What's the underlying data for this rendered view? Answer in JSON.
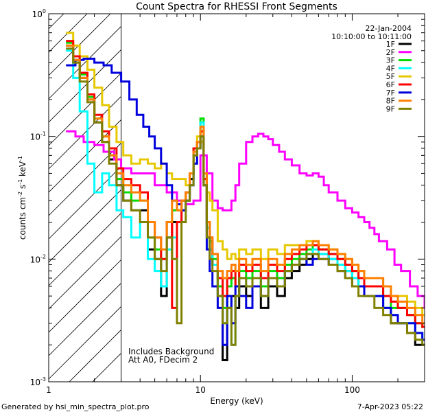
{
  "chart_data": {
    "type": "line",
    "title": "Count Spectra for RHESSI Front Segments",
    "xlabel": "Energy (keV)",
    "ylabel": "counts cm-2 s-1 keV-1",
    "xscale": "log",
    "yscale": "log",
    "xlim": [
      1,
      300
    ],
    "ylim": [
      0.001,
      1.0
    ],
    "x_tick_labels": [
      {
        "value": 1,
        "label": "1"
      },
      {
        "value": 10,
        "label": "10"
      },
      {
        "value": 100,
        "label": "100"
      }
    ],
    "y_tick_labels": [
      {
        "value": 1.0,
        "base": "10",
        "exp": "0"
      },
      {
        "value": 0.1,
        "base": "10",
        "exp": "-1"
      },
      {
        "value": 0.01,
        "base": "10",
        "exp": "-2"
      },
      {
        "value": 0.001,
        "base": "10",
        "exp": "-3"
      }
    ],
    "shaded_region": {
      "x_max": 3.0,
      "style": "hatched"
    },
    "legend_header": [
      "22-Jan-2004",
      "10:10:00 to 10:11:00"
    ],
    "annotations": [
      "Includes Background",
      "Att A0, FDecim 2"
    ],
    "series": [
      {
        "name": "1F",
        "color": "#000000",
        "x": [
          1.3,
          1.45,
          1.6,
          1.8,
          2.0,
          2.25,
          2.5,
          2.8,
          3.1,
          3.5,
          4.0,
          4.5,
          5.0,
          5.5,
          6.0,
          6.5,
          7.0,
          7.5,
          8.0,
          8.5,
          9.0,
          9.5,
          10.0,
          10.5,
          11.0,
          11.5,
          12.0,
          13,
          14,
          15,
          16,
          17,
          18,
          20,
          22,
          25,
          28,
          32,
          36,
          40,
          45,
          50,
          55,
          60,
          70,
          80,
          90,
          100,
          110,
          120,
          140,
          160,
          180,
          200,
          230,
          260,
          290
        ],
        "y": [
          0.55,
          0.4,
          0.3,
          0.2,
          0.13,
          0.09,
          0.065,
          0.04,
          0.03,
          0.025,
          0.025,
          0.012,
          0.01,
          0.005,
          0.015,
          0.02,
          0.02,
          0.025,
          0.03,
          0.045,
          0.07,
          0.08,
          0.09,
          0.04,
          0.015,
          0.012,
          0.009,
          0.005,
          0.0015,
          0.004,
          0.005,
          0.004,
          0.006,
          0.005,
          0.006,
          0.004,
          0.006,
          0.005,
          0.007,
          0.008,
          0.009,
          0.01,
          0.011,
          0.011,
          0.01,
          0.009,
          0.008,
          0.007,
          0.006,
          0.005,
          0.005,
          0.004,
          0.003,
          0.003,
          0.0025,
          0.002,
          0.002
        ]
      },
      {
        "name": "2F",
        "color": "#ff00ff",
        "x": [
          1.3,
          1.5,
          1.7,
          2.0,
          2.3,
          2.7,
          3.0,
          3.5,
          4.0,
          4.5,
          5.0,
          6.0,
          7.0,
          8.0,
          9.0,
          10.0,
          11.0,
          12.0,
          13,
          14,
          15,
          16,
          17,
          18,
          20,
          22,
          24,
          26,
          28,
          30,
          33,
          36,
          40,
          45,
          50,
          55,
          60,
          65,
          70,
          80,
          90,
          100,
          110,
          120,
          130,
          140,
          150,
          170,
          190,
          210,
          240,
          270,
          300
        ],
        "y": [
          0.11,
          0.1,
          0.09,
          0.085,
          0.075,
          0.065,
          0.055,
          0.05,
          0.05,
          0.05,
          0.04,
          0.035,
          0.03,
          0.028,
          0.03,
          0.07,
          0.05,
          0.03,
          0.026,
          0.025,
          0.025,
          0.03,
          0.04,
          0.06,
          0.09,
          0.1,
          0.105,
          0.1,
          0.095,
          0.085,
          0.075,
          0.065,
          0.058,
          0.05,
          0.048,
          0.05,
          0.047,
          0.04,
          0.035,
          0.03,
          0.026,
          0.024,
          0.022,
          0.02,
          0.018,
          0.016,
          0.014,
          0.012,
          0.009,
          0.008,
          0.006,
          0.005,
          0.004
        ]
      },
      {
        "name": "3F",
        "color": "#00dd00",
        "x": [
          1.3,
          1.45,
          1.6,
          1.8,
          2.0,
          2.25,
          2.5,
          2.8,
          3.1,
          3.5,
          4.0,
          4.5,
          5.0,
          5.5,
          6.0,
          6.5,
          7.0,
          7.5,
          8.0,
          8.5,
          9.0,
          9.5,
          10.0,
          10.5,
          11.0,
          11.5,
          12.0,
          13,
          14,
          15,
          16,
          17,
          18,
          20,
          22,
          25,
          28,
          32,
          36,
          40,
          45,
          50,
          55,
          60,
          70,
          80,
          90,
          100,
          110,
          120,
          140,
          160,
          180,
          200,
          230,
          260,
          290
        ],
        "y": [
          0.58,
          0.42,
          0.32,
          0.21,
          0.14,
          0.1,
          0.07,
          0.045,
          0.035,
          0.03,
          0.03,
          0.015,
          0.012,
          0.01,
          0.02,
          0.025,
          0.025,
          0.03,
          0.035,
          0.05,
          0.08,
          0.09,
          0.14,
          0.05,
          0.02,
          0.014,
          0.01,
          0.006,
          0.004,
          0.006,
          0.007,
          0.006,
          0.008,
          0.007,
          0.008,
          0.006,
          0.008,
          0.007,
          0.009,
          0.01,
          0.011,
          0.012,
          0.013,
          0.012,
          0.011,
          0.01,
          0.009,
          0.008,
          0.007,
          0.006,
          0.006,
          0.005,
          0.004,
          0.004,
          0.0035,
          0.003,
          0.0028
        ]
      },
      {
        "name": "4F",
        "color": "#00ffff",
        "x": [
          1.3,
          1.45,
          1.6,
          1.8,
          2.0,
          2.25,
          2.5,
          2.8,
          3.1,
          3.5,
          4.0,
          4.5,
          5.0,
          5.5,
          6.0,
          6.5,
          7.0,
          7.5,
          8.0,
          8.5,
          9.0,
          9.5,
          10.0,
          10.5,
          11.0,
          11.5,
          12.0,
          13,
          14,
          15,
          16,
          17,
          18,
          20,
          22,
          25,
          28,
          32,
          36,
          40,
          45,
          50,
          55,
          60,
          70,
          80,
          90,
          100,
          110,
          120,
          140,
          160,
          180,
          200,
          230,
          260,
          290
        ],
        "y": [
          0.5,
          0.3,
          0.16,
          0.06,
          0.035,
          0.05,
          0.04,
          0.025,
          0.022,
          0.015,
          0.02,
          0.01,
          0.008,
          0.006,
          0.012,
          0.015,
          0.02,
          0.025,
          0.03,
          0.04,
          0.06,
          0.08,
          0.13,
          0.045,
          0.018,
          0.012,
          0.009,
          0.005,
          0.003,
          0.005,
          0.002,
          0.005,
          0.007,
          0.006,
          0.007,
          0.005,
          0.007,
          0.006,
          0.008,
          0.009,
          0.01,
          0.011,
          0.012,
          0.011,
          0.01,
          0.009,
          0.008,
          0.007,
          0.006,
          0.005,
          0.005,
          0.004,
          0.0035,
          0.003,
          0.003,
          0.0025,
          0.0022
        ]
      },
      {
        "name": "5F",
        "color": "#e6c800",
        "x": [
          1.3,
          1.45,
          1.6,
          1.8,
          2.0,
          2.25,
          2.5,
          2.8,
          3.1,
          3.5,
          4.0,
          4.5,
          5.0,
          5.5,
          6.0,
          6.5,
          7.0,
          7.5,
          8.0,
          8.5,
          9.0,
          9.5,
          10.0,
          10.5,
          11.0,
          11.5,
          12.0,
          13,
          14,
          15,
          16,
          17,
          18,
          20,
          22,
          25,
          28,
          32,
          36,
          40,
          45,
          50,
          55,
          60,
          70,
          80,
          90,
          100,
          110,
          120,
          140,
          160,
          180,
          200,
          230,
          260,
          290
        ],
        "y": [
          0.7,
          0.55,
          0.45,
          0.35,
          0.25,
          0.18,
          0.12,
          0.09,
          0.07,
          0.06,
          0.065,
          0.06,
          0.055,
          0.06,
          0.05,
          0.045,
          0.045,
          0.045,
          0.04,
          0.05,
          0.07,
          0.1,
          0.09,
          0.05,
          0.035,
          0.03,
          0.025,
          0.014,
          0.012,
          0.01,
          0.011,
          0.01,
          0.012,
          0.011,
          0.012,
          0.01,
          0.012,
          0.011,
          0.013,
          0.013,
          0.013,
          0.014,
          0.014,
          0.013,
          0.012,
          0.011,
          0.01,
          0.009,
          0.008,
          0.007,
          0.007,
          0.006,
          0.005,
          0.005,
          0.0045,
          0.004,
          0.0035
        ]
      },
      {
        "name": "6F",
        "color": "#ff0000",
        "x": [
          1.3,
          1.45,
          1.6,
          1.8,
          2.0,
          2.25,
          2.5,
          2.8,
          3.1,
          3.5,
          4.0,
          4.5,
          5.0,
          5.5,
          6.0,
          6.5,
          7.0,
          7.5,
          8.0,
          8.5,
          9.0,
          9.5,
          10.0,
          10.5,
          11.0,
          11.5,
          12.0,
          13,
          14,
          15,
          16,
          17,
          18,
          20,
          22,
          25,
          28,
          32,
          36,
          40,
          45,
          50,
          55,
          60,
          70,
          80,
          90,
          100,
          110,
          120,
          140,
          160,
          180,
          200,
          230,
          260,
          290
        ],
        "y": [
          0.6,
          0.45,
          0.33,
          0.22,
          0.15,
          0.11,
          0.08,
          0.055,
          0.045,
          0.04,
          0.035,
          0.02,
          0.015,
          0.01,
          0.02,
          0.004,
          0.02,
          0.03,
          0.035,
          0.05,
          0.08,
          0.09,
          0.11,
          0.045,
          0.02,
          0.015,
          0.011,
          0.007,
          0.005,
          0.007,
          0.008,
          0.006,
          0.009,
          0.008,
          0.009,
          0.007,
          0.009,
          0.008,
          0.01,
          0.011,
          0.012,
          0.013,
          0.013,
          0.012,
          0.011,
          0.01,
          0.009,
          0.008,
          0.007,
          0.006,
          0.006,
          0.005,
          0.0045,
          0.004,
          0.0035,
          0.003,
          0.0028
        ]
      },
      {
        "name": "7F",
        "color": "#0000dd",
        "x": [
          1.3,
          1.5,
          1.7,
          2.0,
          2.3,
          2.6,
          3.0,
          3.4,
          3.8,
          4.2,
          4.6,
          5.0,
          5.5,
          6.0,
          6.5,
          7.0,
          7.5,
          8.0,
          8.5,
          9.0,
          9.5,
          10.0,
          10.5,
          11.0,
          11.5,
          12.0,
          13,
          14,
          15,
          16,
          17,
          18,
          20,
          22,
          25,
          28,
          32,
          36,
          40,
          45,
          50,
          55,
          60,
          70,
          80,
          90,
          100,
          110,
          120,
          140,
          160,
          180,
          200,
          230,
          260,
          290
        ],
        "y": [
          0.38,
          0.42,
          0.43,
          0.4,
          0.38,
          0.33,
          0.28,
          0.2,
          0.15,
          0.12,
          0.1,
          0.08,
          0.06,
          0.04,
          0.03,
          0.028,
          0.025,
          0.03,
          0.04,
          0.06,
          0.08,
          0.1,
          0.04,
          0.012,
          0.008,
          0.006,
          0.004,
          0.002,
          0.005,
          0.003,
          0.006,
          0.005,
          0.004,
          0.006,
          0.005,
          0.007,
          0.006,
          0.008,
          0.009,
          0.01,
          0.009,
          0.01,
          0.01,
          0.009,
          0.008,
          0.007,
          0.006,
          0.006,
          0.005,
          0.005,
          0.004,
          0.0035,
          0.003,
          0.003,
          0.0025,
          0.0022
        ]
      },
      {
        "name": "8F",
        "color": "#ff7f00",
        "x": [
          1.3,
          1.45,
          1.6,
          1.8,
          2.0,
          2.25,
          2.5,
          2.8,
          3.1,
          3.5,
          4.0,
          4.5,
          5.0,
          5.5,
          6.0,
          6.5,
          7.0,
          7.5,
          8.0,
          8.5,
          9.0,
          9.5,
          10.0,
          10.5,
          11.0,
          11.5,
          12.0,
          13,
          14,
          15,
          16,
          17,
          18,
          20,
          22,
          25,
          28,
          32,
          36,
          40,
          45,
          50,
          55,
          60,
          70,
          80,
          90,
          100,
          110,
          120,
          140,
          160,
          180,
          200,
          230,
          260,
          290
        ],
        "y": [
          0.55,
          0.42,
          0.3,
          0.2,
          0.14,
          0.1,
          0.07,
          0.05,
          0.04,
          0.035,
          0.03,
          0.02,
          0.015,
          0.012,
          0.02,
          0.03,
          0.025,
          0.03,
          0.035,
          0.05,
          0.075,
          0.09,
          0.12,
          0.05,
          0.02,
          0.015,
          0.011,
          0.008,
          0.007,
          0.008,
          0.009,
          0.008,
          0.01,
          0.009,
          0.01,
          0.008,
          0.01,
          0.009,
          0.011,
          0.012,
          0.013,
          0.013,
          0.014,
          0.013,
          0.012,
          0.011,
          0.01,
          0.009,
          0.008,
          0.007,
          0.007,
          0.006,
          0.005,
          0.0045,
          0.004,
          0.0035,
          0.003
        ]
      },
      {
        "name": "9F",
        "color": "#808000",
        "x": [
          1.3,
          1.45,
          1.6,
          1.8,
          2.0,
          2.25,
          2.5,
          2.8,
          3.1,
          3.5,
          4.0,
          4.5,
          5.0,
          5.5,
          6.0,
          6.5,
          7.0,
          7.5,
          8.0,
          8.5,
          9.0,
          9.5,
          10.0,
          10.5,
          11.0,
          11.5,
          12.0,
          13,
          14,
          15,
          16,
          17,
          18,
          20,
          22,
          25,
          28,
          32,
          36,
          40,
          45,
          50,
          55,
          60,
          70,
          80,
          90,
          100,
          110,
          120,
          140,
          160,
          180,
          200,
          230,
          260,
          290
        ],
        "y": [
          0.52,
          0.4,
          0.28,
          0.19,
          0.13,
          0.09,
          0.06,
          0.04,
          0.03,
          0.025,
          0.02,
          0.015,
          0.01,
          0.008,
          0.015,
          0.01,
          0.003,
          0.02,
          0.03,
          0.04,
          0.07,
          0.08,
          0.1,
          0.04,
          0.015,
          0.01,
          0.008,
          0.005,
          0.003,
          0.004,
          0.002,
          0.005,
          0.007,
          0.006,
          0.007,
          0.005,
          0.007,
          0.006,
          0.008,
          0.009,
          0.01,
          0.011,
          0.011,
          0.01,
          0.009,
          0.008,
          0.007,
          0.006,
          0.005,
          0.005,
          0.004,
          0.0035,
          0.003,
          0.003,
          0.0025,
          0.0022,
          0.002
        ]
      }
    ]
  },
  "footer": {
    "left": "Generated by hsi_min_spectra_plot.pro",
    "right": "7-Apr-2023 05:22"
  }
}
